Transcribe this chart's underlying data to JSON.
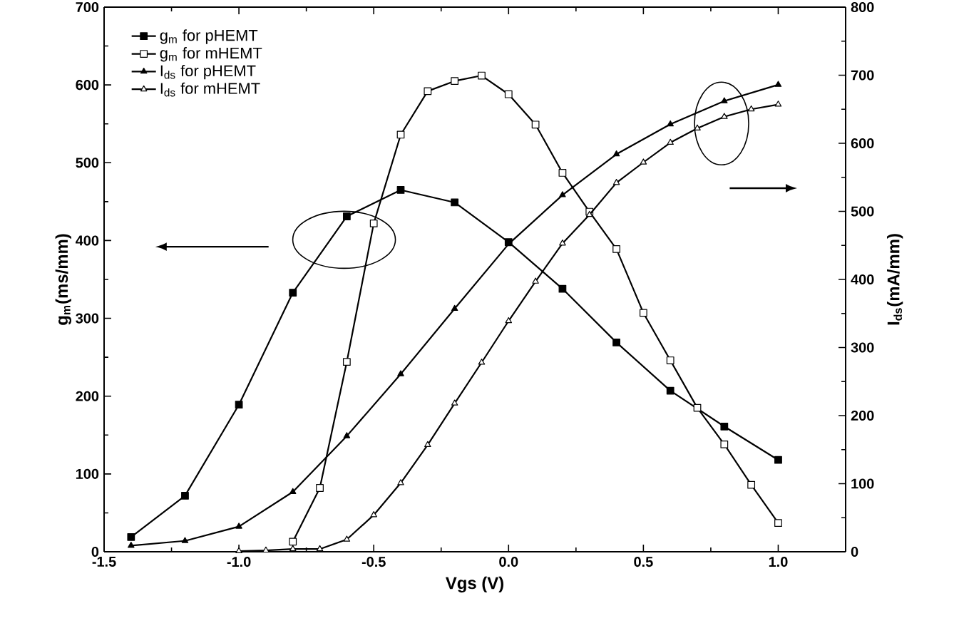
{
  "chart_data": {
    "type": "line",
    "xlabel": "Vgs (V)",
    "ylabel": "g$_{m}$(ms/mm)",
    "y2label": "I$_{ds}$(mA/mm)",
    "xlim": [
      -1.5,
      1.25
    ],
    "xticks": [
      {
        "value": -1.5,
        "label": "-1.5"
      },
      {
        "value": -1.0,
        "label": "-1.0"
      },
      {
        "value": -0.5,
        "label": "-0.5"
      },
      {
        "value": 0.0,
        "label": "0.0"
      },
      {
        "value": 0.5,
        "label": "0.5"
      },
      {
        "value": 1.0,
        "label": "1.0"
      }
    ],
    "ylim": [
      0,
      700
    ],
    "yticks": [
      0,
      100,
      200,
      300,
      400,
      500,
      600,
      700
    ],
    "y2lim": [
      0,
      800
    ],
    "y2ticks": [
      0,
      100,
      200,
      300,
      400,
      500,
      600,
      700,
      800
    ],
    "legend": "top left",
    "grid": false,
    "line_style": "solid",
    "series": [
      {
        "name": "g$_{m}$ for pHEMT",
        "color": "#000000",
        "marker": "square",
        "x": [
          -1.4,
          -1.2,
          -1.0,
          -0.8,
          -0.6,
          -0.4,
          -0.2,
          0.0,
          0.2,
          0.4,
          0.6,
          0.8,
          1.0
        ],
        "values": [
          19,
          72,
          189,
          333,
          431,
          465,
          449,
          398,
          338,
          269,
          207,
          161,
          118
        ]
      },
      {
        "name": "g$_{m}$ for mHEMT",
        "color": "#000000",
        "marker": "square",
        "x": [
          -0.8,
          -0.7,
          -0.6,
          -0.5,
          -0.4,
          -0.3,
          -0.2,
          -0.1,
          0.0,
          0.1,
          0.2,
          0.3,
          0.4,
          0.5,
          0.6,
          0.7,
          0.8,
          0.9,
          1.0
        ],
        "values": [
          13,
          82,
          244,
          422,
          536,
          592,
          605,
          612,
          588,
          549,
          487,
          437,
          389,
          307,
          246,
          185,
          138,
          86,
          37
        ]
      },
      {
        "name": "I$_{ds}$ for pHEMT",
        "color": "#000000",
        "marker": "triangle",
        "axis": "y2",
        "x": [
          -1.4,
          -1.2,
          -1.0,
          -0.8,
          -0.6,
          -0.4,
          -0.2,
          0.0,
          0.2,
          0.4,
          0.6,
          0.8,
          1.0
        ],
        "values": [
          9,
          16,
          37,
          88,
          170,
          261,
          357,
          452,
          524,
          584,
          628,
          662,
          686
        ]
      },
      {
        "name": "I$_{ds}$ for mHEMT",
        "color": "#000000",
        "marker": "triangle",
        "axis": "y2",
        "x": [
          -1.0,
          -0.9,
          -0.8,
          -0.7,
          -0.6,
          -0.5,
          -0.4,
          -0.3,
          -0.2,
          -0.1,
          0.0,
          0.1,
          0.2,
          0.3,
          0.4,
          0.5,
          0.6,
          0.7,
          0.8,
          0.9,
          1.0
        ],
        "values": [
          1,
          2,
          4,
          4,
          18,
          54,
          101,
          157,
          218,
          278,
          339,
          397,
          453,
          495,
          542,
          572,
          601,
          622,
          639,
          650,
          657
        ]
      }
    ]
  }
}
